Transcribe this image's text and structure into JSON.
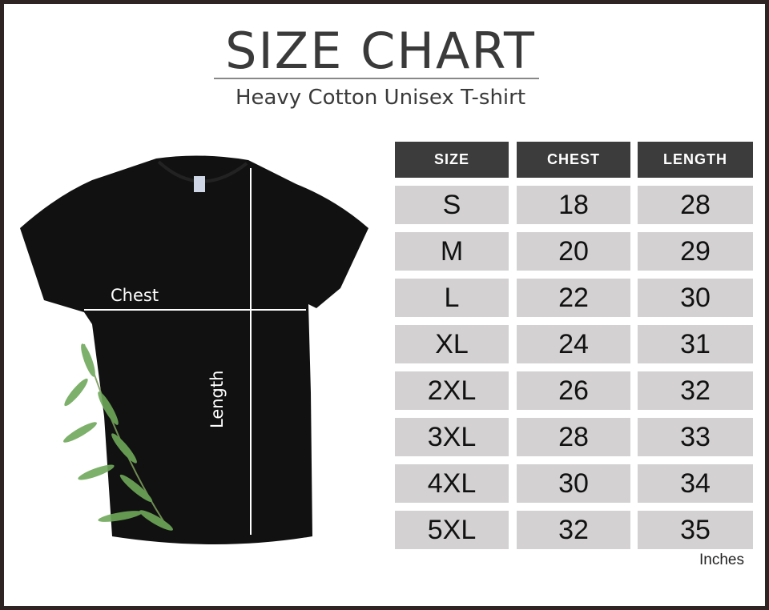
{
  "title": "SIZE CHART",
  "subtitle": "Heavy Cotton Unisex T-shirt",
  "diagram": {
    "chest_label": "Chest",
    "length_label": "Length"
  },
  "table": {
    "headers": [
      "SIZE",
      "CHEST",
      "LENGTH"
    ],
    "rows": [
      [
        "S",
        "18",
        "28"
      ],
      [
        "M",
        "20",
        "29"
      ],
      [
        "L",
        "22",
        "30"
      ],
      [
        "XL",
        "24",
        "31"
      ],
      [
        "2XL",
        "26",
        "32"
      ],
      [
        "3XL",
        "28",
        "33"
      ],
      [
        "4XL",
        "30",
        "34"
      ],
      [
        "5XL",
        "32",
        "35"
      ]
    ],
    "unit": "Inches"
  },
  "colors": {
    "border": "#2e2424",
    "header_bg": "#3c3c3c",
    "cell_bg": "#d3d1d2"
  }
}
